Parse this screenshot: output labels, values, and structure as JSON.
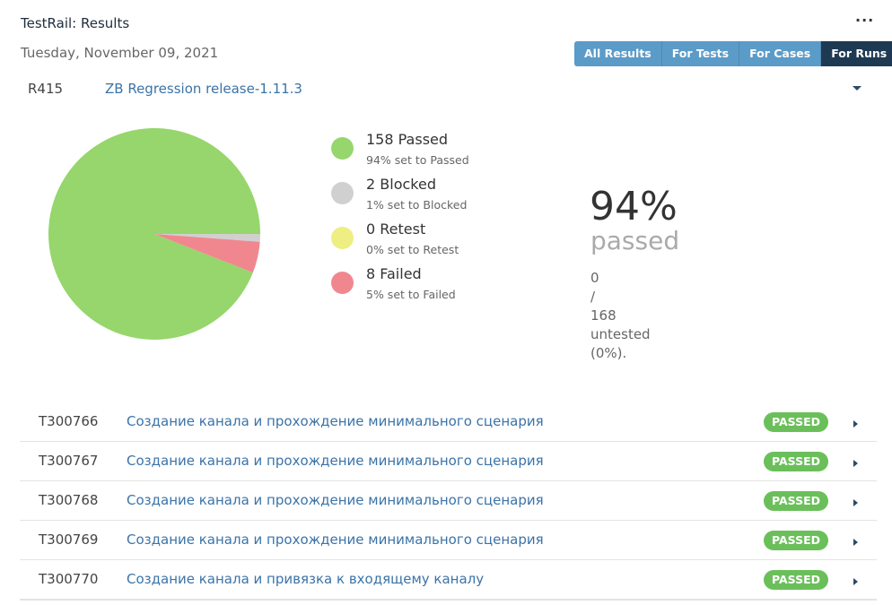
{
  "header": {
    "title": "TestRail: Results",
    "more_icon": "more-horizontal-icon",
    "more_label": "···"
  },
  "date": "Tuesday, November 09, 2021",
  "tabs": [
    {
      "label": "All Results",
      "active": false
    },
    {
      "label": "For Tests",
      "active": false
    },
    {
      "label": "For Cases",
      "active": false
    },
    {
      "label": "For Runs",
      "active": true
    }
  ],
  "run": {
    "id": "R415",
    "name": "ZB Regression release-1.11.3",
    "toggle_icon": "caret-down-icon"
  },
  "chart_data": {
    "type": "pie",
    "slices": [
      {
        "label": "Passed",
        "value": 158,
        "color": "#96d66c"
      },
      {
        "label": "Blocked",
        "value": 2,
        "color": "#d0d0d0"
      },
      {
        "label": "Retest",
        "value": 0,
        "color": "#eeee82"
      },
      {
        "label": "Failed",
        "value": 8,
        "color": "#f0878f"
      }
    ],
    "total": 168
  },
  "legend": [
    {
      "label": "158 Passed",
      "sub": "94% set to Passed",
      "color": "#96d66c"
    },
    {
      "label": "2 Blocked",
      "sub": "1% set to Blocked",
      "color": "#d0d0d0"
    },
    {
      "label": "0 Retest",
      "sub": "0% set to Retest",
      "color": "#eeee82"
    },
    {
      "label": "8 Failed",
      "sub": "5% set to Failed",
      "color": "#f0878f"
    }
  ],
  "summary": {
    "percent": "94%",
    "word": "passed",
    "untested_lines": [
      "0",
      "/",
      "168",
      "untested",
      "(0%)."
    ]
  },
  "tests": [
    {
      "id": "T300766",
      "title": "Создание канала и прохождение минимального сценария",
      "status": "PASSED"
    },
    {
      "id": "T300767",
      "title": "Создание канала и прохождение минимального сценария",
      "status": "PASSED"
    },
    {
      "id": "T300768",
      "title": "Создание канала и прохождение минимального сценария",
      "status": "PASSED"
    },
    {
      "id": "T300769",
      "title": "Создание канала и прохождение минимального сценария",
      "status": "PASSED"
    },
    {
      "id": "T300770",
      "title": "Создание канала и привязка к входящему каналу",
      "status": "PASSED"
    }
  ],
  "row_arrow_icon": "caret-right-icon"
}
